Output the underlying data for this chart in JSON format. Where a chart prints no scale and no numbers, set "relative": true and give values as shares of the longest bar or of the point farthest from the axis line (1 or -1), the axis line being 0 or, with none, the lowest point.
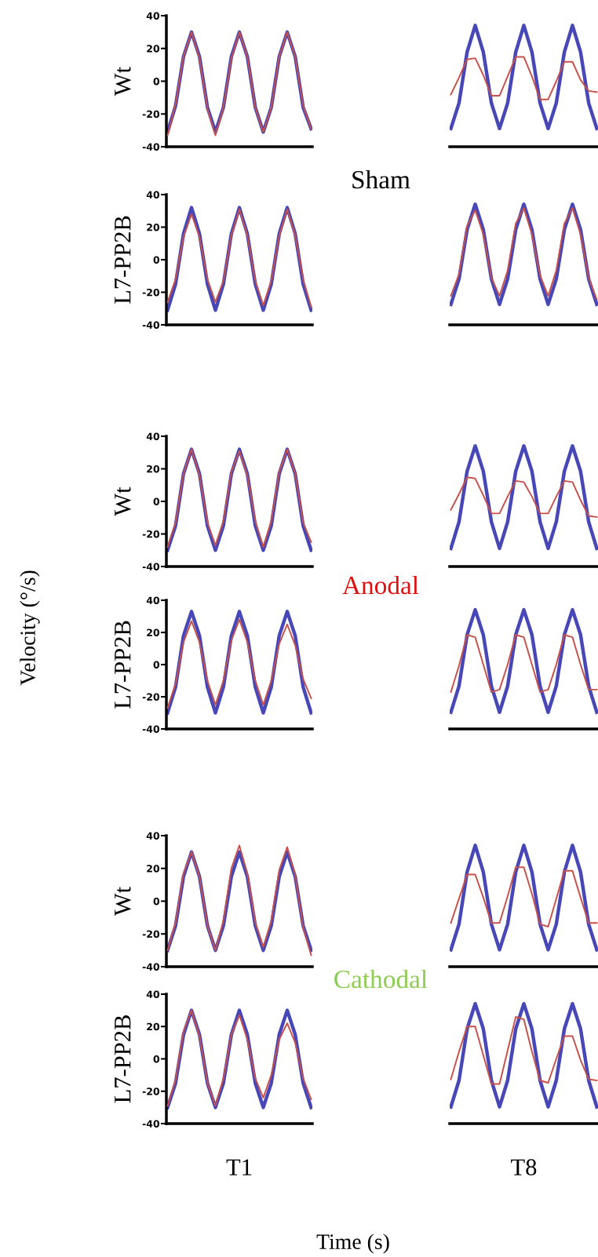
{
  "chart_data": [
    {
      "type": "line",
      "ylabel": "Wt",
      "annotations": [
        "Sham",
        "Anodal",
        "Cathodal",
        "Velocity (°/s)",
        "Time (s)"
      ],
      "categories": [
        null,
        null,
        null,
        null,
        null,
        null,
        null,
        null,
        null,
        null,
        null,
        null,
        null,
        null,
        null,
        null,
        null,
        null,
        null
      ],
      "ylim": [
        -40,
        40
      ],
      "yticks": [
        -40,
        -20,
        0,
        20,
        40
      ],
      "tick_labels": "y",
      "series": [
        {
          "color": "#4747b8",
          "values": [
            -31,
            -15,
            15,
            30,
            15,
            -16,
            -31,
            -16,
            15,
            30,
            15,
            -16,
            -31,
            -16,
            15,
            30,
            15,
            -16,
            -29
          ]
        },
        {
          "color": "#c8504a",
          "values": [
            -33,
            -14,
            15,
            30,
            14,
            -17,
            -33,
            -16,
            14,
            30,
            15,
            -16,
            -31,
            -16,
            15,
            30,
            15,
            -15,
            -29
          ]
        }
      ]
    },
    {
      "type": "line",
      "relative": true,
      "categories": [
        null,
        null,
        null,
        null,
        null,
        null,
        null,
        null,
        null,
        null,
        null,
        null,
        null,
        null,
        null,
        null,
        null,
        null,
        null
      ],
      "series": [
        {
          "color": "#4747b8",
          "values": [
            0.15,
            0.36,
            0.78,
            1,
            0.78,
            0.36,
            0.15,
            0.36,
            0.78,
            1,
            0.78,
            0.36,
            0.15,
            0.36,
            0.78,
            1,
            0.78,
            0.36,
            0.15
          ]
        },
        {
          "color": "#c8504a",
          "values": [
            0.43,
            0.57,
            0.72,
            0.73,
            0.59,
            0.42,
            0.42,
            0.58,
            0.74,
            0.74,
            0.58,
            0.39,
            0.39,
            0.54,
            0.7,
            0.7,
            0.55,
            0.46,
            0.45
          ]
        }
      ]
    },
    {
      "type": "line",
      "ylabel": "L7-PP2B",
      "categories": [
        null,
        null,
        null,
        null,
        null,
        null,
        null,
        null,
        null,
        null,
        null,
        null,
        null,
        null,
        null,
        null,
        null,
        null,
        null
      ],
      "ylim": [
        -40,
        40
      ],
      "yticks": [
        -40,
        -20,
        0,
        20,
        40
      ],
      "tick_labels": "y",
      "series": [
        {
          "color": "#4747b8",
          "values": [
            -31,
            -15,
            16,
            32,
            16,
            -15,
            -31,
            -15,
            16,
            32,
            16,
            -15,
            -31,
            -15,
            16,
            32,
            16,
            -15,
            -31
          ]
        },
        {
          "color": "#c8504a",
          "values": [
            -26,
            -12,
            14,
            28,
            14,
            -12,
            -26,
            -13,
            15,
            31,
            15,
            -13,
            -28,
            -13,
            15,
            31,
            15,
            -12,
            -29
          ]
        }
      ]
    },
    {
      "type": "line",
      "relative": true,
      "categories": [
        null,
        null,
        null,
        null,
        null,
        null,
        null,
        null,
        null,
        null,
        null,
        null,
        null,
        null,
        null,
        null,
        null,
        null,
        null
      ],
      "series": [
        {
          "color": "#4747b8",
          "values": [
            0.17,
            0.38,
            0.79,
            1,
            0.79,
            0.38,
            0.17,
            0.38,
            0.79,
            1,
            0.79,
            0.38,
            0.17,
            0.38,
            0.79,
            1,
            0.79,
            0.38,
            0.17
          ]
        },
        {
          "color": "#c8504a",
          "values": [
            0.24,
            0.42,
            0.82,
            0.95,
            0.75,
            0.39,
            0.24,
            0.45,
            0.84,
            0.97,
            0.75,
            0.41,
            0.24,
            0.45,
            0.84,
            0.97,
            0.75,
            0.39,
            0.21
          ]
        }
      ]
    },
    {
      "type": "line",
      "ylabel": "Wt",
      "categories": [
        null,
        null,
        null,
        null,
        null,
        null,
        null,
        null,
        null,
        null,
        null,
        null,
        null,
        null,
        null,
        null,
        null,
        null,
        null
      ],
      "ylim": [
        -40,
        40
      ],
      "yticks": [
        -40,
        -20,
        0,
        20,
        40
      ],
      "tick_labels": "y",
      "series": [
        {
          "color": "#4747b8",
          "values": [
            -30,
            -15,
            17,
            32,
            17,
            -15,
            -30,
            -15,
            17,
            32,
            17,
            -15,
            -30,
            -15,
            17,
            32,
            17,
            -15,
            -30
          ]
        },
        {
          "color": "#c8504a",
          "values": [
            -28,
            -13,
            17,
            32,
            16,
            -13,
            -27,
            -12,
            18,
            31,
            16,
            -12,
            -28,
            -12,
            18,
            32,
            17,
            -13,
            -25
          ]
        }
      ]
    },
    {
      "type": "line",
      "relative": true,
      "categories": [
        null,
        null,
        null,
        null,
        null,
        null,
        null,
        null,
        null,
        null,
        null,
        null,
        null,
        null,
        null,
        null,
        null,
        null,
        null
      ],
      "series": [
        {
          "color": "#4747b8",
          "values": [
            0.15,
            0.37,
            0.79,
            1,
            0.79,
            0.37,
            0.15,
            0.37,
            0.79,
            1,
            0.79,
            0.37,
            0.15,
            0.37,
            0.79,
            1,
            0.79,
            0.37,
            0.15
          ]
        },
        {
          "color": "#c8504a",
          "values": [
            0.47,
            0.6,
            0.74,
            0.73,
            0.59,
            0.44,
            0.44,
            0.58,
            0.71,
            0.7,
            0.58,
            0.44,
            0.44,
            0.58,
            0.71,
            0.7,
            0.55,
            0.42,
            0.41
          ]
        }
      ]
    },
    {
      "type": "line",
      "ylabel": "L7-PP2B",
      "categories": [
        null,
        null,
        null,
        null,
        null,
        null,
        null,
        null,
        null,
        null,
        null,
        null,
        null,
        null,
        null,
        null,
        null,
        null,
        null
      ],
      "ylim": [
        -40,
        40
      ],
      "yticks": [
        -40,
        -20,
        0,
        20,
        40
      ],
      "tick_labels": "y",
      "series": [
        {
          "color": "#4747b8",
          "values": [
            -30,
            -14,
            18,
            33,
            18,
            -14,
            -30,
            -14,
            18,
            33,
            18,
            -14,
            -30,
            -14,
            18,
            33,
            18,
            -14,
            -30
          ]
        },
        {
          "color": "#c8504a",
          "values": [
            -27,
            -12,
            14,
            27,
            14,
            -10,
            -25,
            -10,
            15,
            28,
            14,
            -10,
            -25,
            -10,
            13,
            25,
            12,
            -9,
            -21
          ]
        }
      ]
    },
    {
      "type": "line",
      "relative": true,
      "categories": [
        null,
        null,
        null,
        null,
        null,
        null,
        null,
        null,
        null,
        null,
        null,
        null,
        null,
        null,
        null,
        null,
        null,
        null,
        null
      ],
      "series": [
        {
          "color": "#4747b8",
          "values": [
            0.14,
            0.36,
            0.79,
            1,
            0.79,
            0.36,
            0.14,
            0.36,
            0.79,
            1,
            0.79,
            0.36,
            0.14,
            0.36,
            0.79,
            1,
            0.79,
            0.36,
            0.14
          ]
        },
        {
          "color": "#c8504a",
          "values": [
            0.31,
            0.53,
            0.79,
            0.77,
            0.54,
            0.31,
            0.33,
            0.54,
            0.79,
            0.77,
            0.54,
            0.31,
            0.33,
            0.54,
            0.79,
            0.77,
            0.54,
            0.33,
            0.33
          ]
        }
      ]
    },
    {
      "type": "line",
      "ylabel": "Wt",
      "categories": [
        null,
        null,
        null,
        null,
        null,
        null,
        null,
        null,
        null,
        null,
        null,
        null,
        null,
        null,
        null,
        null,
        null,
        null,
        null
      ],
      "ylim": [
        -40,
        40
      ],
      "yticks": [
        -40,
        -20,
        0,
        20,
        40
      ],
      "tick_labels": "y",
      "series": [
        {
          "color": "#4747b8",
          "values": [
            -30,
            -15,
            15,
            30,
            15,
            -15,
            -30,
            -15,
            15,
            30,
            15,
            -15,
            -30,
            -15,
            15,
            30,
            15,
            -15,
            -30
          ]
        },
        {
          "color": "#c8504a",
          "values": [
            -30,
            -13,
            17,
            30,
            15,
            -15,
            -30,
            -12,
            20,
            34,
            17,
            -13,
            -28,
            -12,
            19,
            33,
            16,
            -16,
            -33
          ]
        }
      ]
    },
    {
      "type": "line",
      "relative": true,
      "categories": [
        null,
        null,
        null,
        null,
        null,
        null,
        null,
        null,
        null,
        null,
        null,
        null,
        null,
        null,
        null,
        null,
        null,
        null,
        null
      ],
      "series": [
        {
          "color": "#4747b8",
          "values": [
            0.14,
            0.35,
            0.78,
            1,
            0.78,
            0.35,
            0.14,
            0.35,
            0.78,
            1,
            0.78,
            0.35,
            0.14,
            0.35,
            0.78,
            1,
            0.78,
            0.35,
            0.14
          ]
        },
        {
          "color": "#c8504a",
          "values": [
            0.36,
            0.56,
            0.76,
            0.76,
            0.57,
            0.36,
            0.36,
            0.58,
            0.82,
            0.82,
            0.6,
            0.35,
            0.33,
            0.56,
            0.79,
            0.79,
            0.57,
            0.36,
            0.36
          ]
        }
      ]
    },
    {
      "type": "line",
      "ylabel": "L7-PP2B",
      "xlabel": "T1",
      "categories": [
        null,
        null,
        null,
        null,
        null,
        null,
        null,
        null,
        null,
        null,
        null,
        null,
        null,
        null,
        null,
        null,
        null,
        null,
        null
      ],
      "ylim": [
        -40,
        40
      ],
      "yticks": [
        -40,
        -20,
        0,
        20,
        40
      ],
      "tick_labels": "y",
      "series": [
        {
          "color": "#4747b8",
          "values": [
            -30,
            -15,
            15,
            30,
            15,
            -15,
            -30,
            -15,
            15,
            30,
            15,
            -15,
            -30,
            -15,
            15,
            30,
            15,
            -15,
            -30
          ]
        },
        {
          "color": "#c8504a",
          "values": [
            -29,
            -13,
            17,
            30,
            14,
            -15,
            -29,
            -12,
            15,
            27,
            12,
            -12,
            -24,
            -10,
            12,
            22,
            10,
            -12,
            -25
          ]
        }
      ]
    },
    {
      "type": "line",
      "relative": true,
      "categories": [
        null,
        null,
        null,
        null,
        null,
        null,
        null,
        null,
        null,
        null,
        null,
        null,
        null,
        null,
        null,
        null,
        null,
        null,
        null
      ],
      "series": [
        {
          "color": "#4747b8",
          "values": [
            0.14,
            0.36,
            0.79,
            1,
            0.79,
            0.36,
            0.14,
            0.36,
            0.79,
            1,
            0.79,
            0.36,
            0.14,
            0.36,
            0.79,
            1,
            0.79,
            0.36,
            0.14
          ]
        },
        {
          "color": "#c8504a",
          "values": [
            0.37,
            0.6,
            0.81,
            0.81,
            0.57,
            0.33,
            0.33,
            0.61,
            0.89,
            0.87,
            0.6,
            0.36,
            0.34,
            0.54,
            0.73,
            0.73,
            0.53,
            0.37,
            0.36
          ]
        }
      ],
      "xlabel": "T8"
    }
  ]
}
